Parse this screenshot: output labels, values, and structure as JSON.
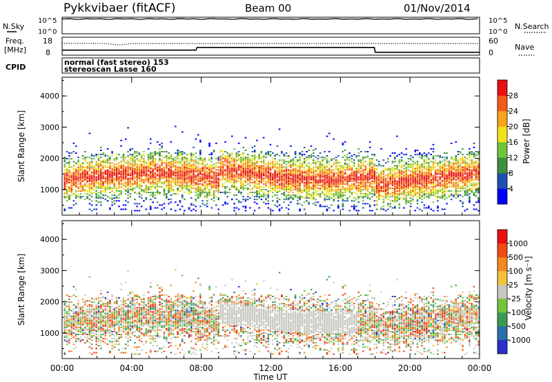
{
  "header": {
    "station": "Pykkvibaer (fitACF)",
    "beam": "Beam 00",
    "date": "01/Nov/2014"
  },
  "top_panels": {
    "nsky_label": "N.Sky",
    "nsky_ticks": [
      "10^5",
      "10^0"
    ],
    "nsearch_label": "N.Search",
    "nsearch_ticks": [
      "10^5",
      "10^0"
    ],
    "freq_label_1": "Freq.",
    "freq_label_2": "[MHz]",
    "freq_ticks": [
      "18",
      "8"
    ],
    "nave_label": "Nave",
    "nave_ticks": [
      "60",
      "0"
    ],
    "cpid_label": "CPID",
    "cpid_line1": "normal (fast stereo) 153",
    "cpid_line2": "stereoscan Lasse 160"
  },
  "panels": [
    {
      "ylabel": "Slant Range [km]",
      "yticks": [
        "4000",
        "3000",
        "2000",
        "1000"
      ],
      "colorbar_label": "Power [dB]",
      "colorbar_ticks": [
        "28",
        "24",
        "20",
        "16",
        "12",
        "8",
        "4"
      ],
      "colors": [
        "#0000ff",
        "#1f4fb0",
        "#3c8f3c",
        "#6fc43a",
        "#f2e21a",
        "#f7a51b",
        "#f35a18",
        "#e81010"
      ]
    },
    {
      "ylabel": "Slant Range [km]",
      "yticks": [
        "4000",
        "3000",
        "2000",
        "1000"
      ],
      "colorbar_label": "Velocity [m s⁻¹]",
      "colorbar_ticks": [
        "1000",
        "500",
        "100",
        "25",
        "-25",
        "-100",
        "-500",
        "-1000"
      ],
      "colors": [
        "#2b2fc9",
        "#2a6fa8",
        "#3a9a55",
        "#74c43c",
        "#c8c8c0",
        "#f2c03a",
        "#f28a1e",
        "#f04a14",
        "#e81010"
      ]
    }
  ],
  "xaxis": {
    "label": "Time UT",
    "ticks": [
      "00:00",
      "04:00",
      "08:00",
      "12:00",
      "16:00",
      "20:00",
      "00:00"
    ]
  },
  "chart_data": [
    {
      "type": "line",
      "title": "N.Sky / N.Search",
      "x_range_hours": [
        0,
        24
      ],
      "y_scale": "log",
      "ylim": [
        1,
        100000
      ],
      "series": [
        {
          "name": "N.Sky",
          "x": [
            0,
            8.5,
            18,
            24
          ],
          "y": [
            30000,
            30000,
            30000,
            30000
          ]
        },
        {
          "name": "N.Search",
          "x": [
            0,
            24
          ],
          "y": [
            30000,
            30000
          ]
        }
      ]
    },
    {
      "type": "line",
      "title": "Freq. / Nave",
      "x_range_hours": [
        0,
        24
      ],
      "series": [
        {
          "name": "Freq.",
          "x": [
            0,
            7.7,
            7.75,
            17.95,
            18.0,
            24
          ],
          "y": [
            10.8,
            10.8,
            12.3,
            12.3,
            9.6,
            9.6
          ]
        },
        {
          "name": "Nave",
          "x": [
            0,
            2.5,
            3.3,
            4,
            24
          ],
          "y": [
            40,
            39,
            34,
            39,
            39
          ]
        }
      ]
    },
    {
      "type": "heatmap",
      "title": "Power",
      "x_range_hours": [
        0,
        24
      ],
      "ylim": [
        180,
        4600
      ],
      "zlabel": "Power [dB]",
      "zlim": [
        0,
        30
      ]
    },
    {
      "type": "heatmap",
      "title": "Velocity",
      "x_range_hours": [
        0,
        24
      ],
      "ylim": [
        180,
        4600
      ],
      "zlabel": "Velocity [m s-1]",
      "zlim": [
        -1000,
        1000
      ]
    }
  ]
}
